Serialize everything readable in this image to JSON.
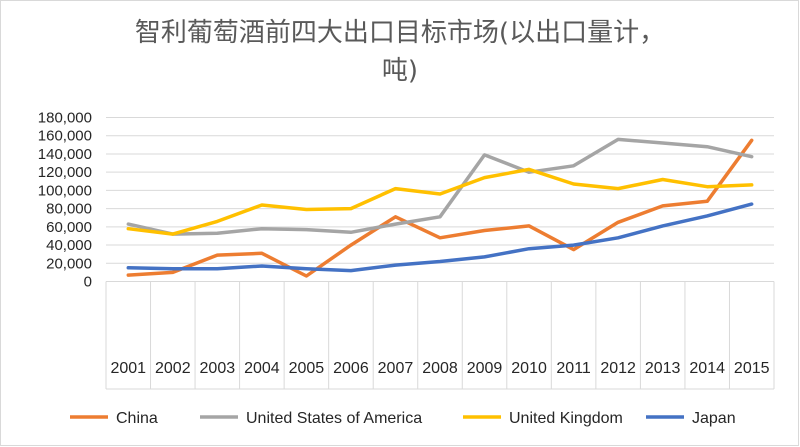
{
  "chart_data": {
    "type": "line",
    "title_line1": "智利葡萄酒前四大出口目标市场(以出口量计，",
    "title_line2": "吨)",
    "xlabel": "",
    "ylabel": "",
    "ylim": [
      0,
      180000
    ],
    "yticks": [
      "0",
      "20,000",
      "40,000",
      "60,000",
      "80,000",
      "100,000",
      "120,000",
      "140,000",
      "160,000",
      "180,000"
    ],
    "categories": [
      "2001",
      "2002",
      "2003",
      "2004",
      "2005",
      "2006",
      "2007",
      "2008",
      "2009",
      "2010",
      "2011",
      "2012",
      "2013",
      "2014",
      "2015"
    ],
    "legend_position": "bottom",
    "grid": true,
    "series": [
      {
        "name": "China",
        "color": "#ED7D31",
        "values": [
          7000,
          10000,
          29000,
          31000,
          6000,
          40000,
          71000,
          48000,
          56000,
          61000,
          35000,
          65000,
          83000,
          88000,
          155000
        ]
      },
      {
        "name": "United States of America",
        "color": "#A5A5A5",
        "values": [
          63000,
          52000,
          53000,
          58000,
          57000,
          54000,
          63000,
          71000,
          139000,
          120000,
          127000,
          156000,
          152000,
          148000,
          137000
        ]
      },
      {
        "name": "United Kingdom",
        "color": "#FFC000",
        "values": [
          58000,
          52000,
          66000,
          84000,
          79000,
          80000,
          102000,
          96000,
          114000,
          123000,
          107000,
          102000,
          112000,
          104000,
          106000
        ]
      },
      {
        "name": "Japan",
        "color": "#4472C4",
        "values": [
          15000,
          14000,
          14000,
          17000,
          14000,
          12000,
          18000,
          22000,
          27000,
          36000,
          40000,
          48000,
          61000,
          72000,
          85000
        ]
      }
    ]
  }
}
